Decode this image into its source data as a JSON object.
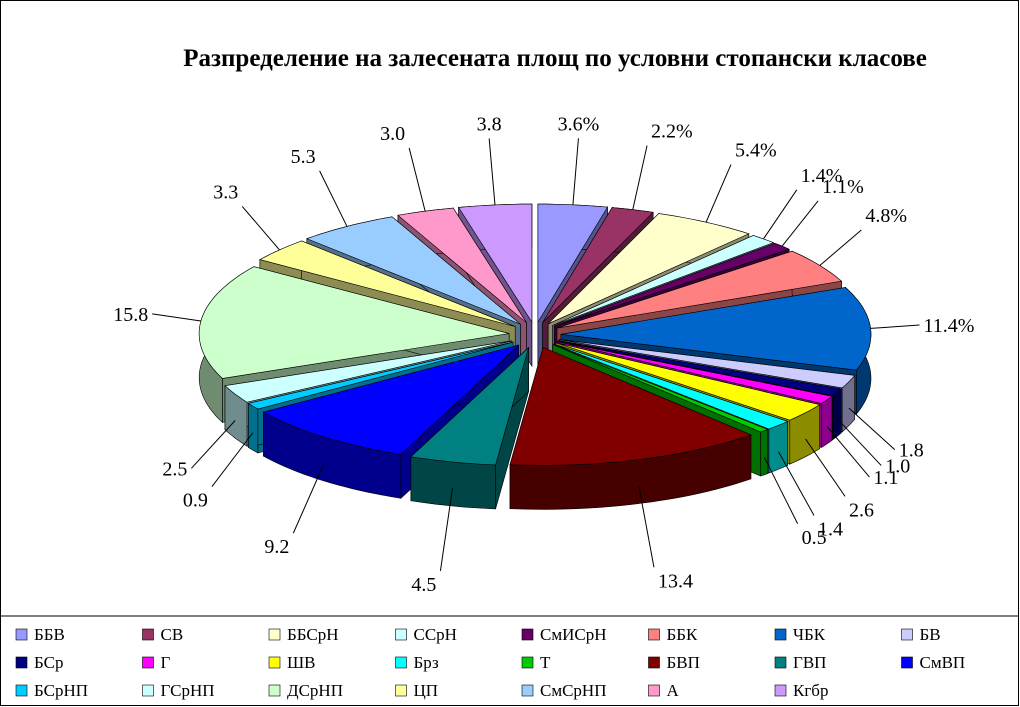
{
  "chart_data": {
    "type": "pie3d",
    "title": "Разпределение на залесената площ по условни стопански класове",
    "categories": [
      "ББВ",
      "СВ",
      "ББСрН",
      "ССрН",
      "СмИСрН",
      "ББК",
      "ЧБК",
      "БВ",
      "БСр",
      "Г",
      "ШВ",
      "Брз",
      "Т",
      "БВП",
      "ГВП",
      "СмВП",
      "БСрНП",
      "ГСрНП",
      "ДСрНП",
      "ЦП",
      "СмСрНП",
      "А",
      "Кгбр"
    ],
    "values": [
      3.6,
      2.2,
      5.4,
      1.4,
      1.1,
      4.8,
      11.4,
      1.8,
      1.0,
      1.1,
      2.6,
      1.4,
      0.5,
      13.4,
      4.5,
      9.2,
      0.9,
      2.5,
      15.8,
      3.3,
      5.3,
      3.0,
      3.8
    ],
    "value_labels": [
      "3.6%",
      "2.2%",
      "5.4%",
      "1.4%",
      "1.1%",
      "4.8%",
      "11.4%",
      "1.8",
      "1.0",
      "1.1",
      "2.6",
      "1.4",
      "0.5",
      "13.4",
      "4.5",
      "9.2",
      "0.9",
      "2.5",
      "15.8",
      "3.3",
      "5.3",
      "3.0",
      "3.8"
    ],
    "colors": [
      "#9999ff",
      "#993366",
      "#ffffcc",
      "#ccffff",
      "#660066",
      "#ff8080",
      "#0066cc",
      "#ccccff",
      "#000080",
      "#ff00ff",
      "#ffff00",
      "#00ffff",
      "#00cc00",
      "#800000",
      "#008080",
      "#0000ff",
      "#00ccff",
      "#ccffff",
      "#ccffcc",
      "#ffff99",
      "#99ccff",
      "#ff99cc",
      "#cc99ff"
    ],
    "legend": "bottom"
  }
}
